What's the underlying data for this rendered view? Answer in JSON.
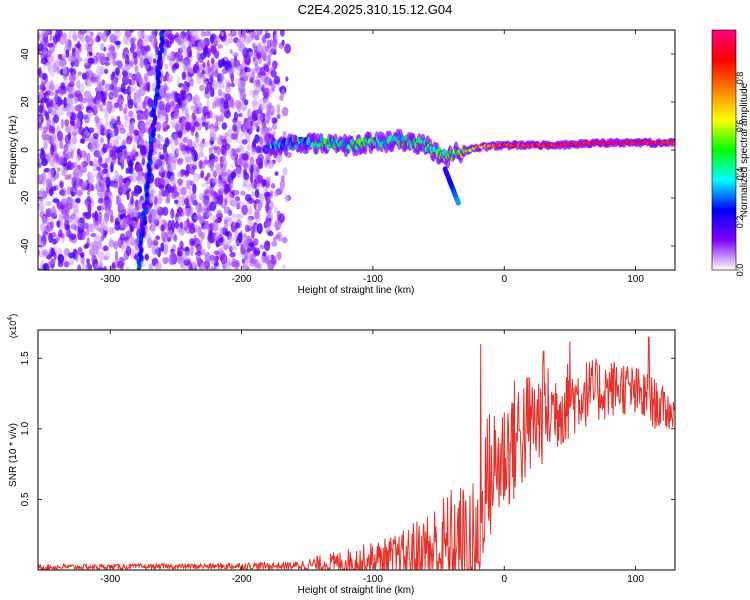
{
  "title": "C2E4.2025.310.15.12.G04",
  "chart_data": [
    {
      "type": "heatmap",
      "name": "spectrogram",
      "xlabel": "Height of straight line (km)",
      "ylabel": "Frequency (Hz)",
      "xlim": [
        -355,
        130
      ],
      "ylim": [
        -50,
        50
      ],
      "x_ticks": [
        -300,
        -200,
        -100,
        0,
        100
      ],
      "y_ticks": [
        -40,
        -20,
        0,
        20,
        40
      ],
      "colorbar": {
        "label": "Normalized spectral amplitude",
        "range": [
          0,
          1
        ],
        "ticks": [
          0.0,
          0.2,
          0.4,
          0.6,
          0.8
        ],
        "tick_labels": [
          "0.0",
          "0.2",
          "0.4",
          "0.6",
          "0.8"
        ],
        "colormap": [
          "#ffffff",
          "#7f00ff",
          "#0000ff",
          "#00ffff",
          "#00ff00",
          "#ffff00",
          "#ff8000",
          "#ff0000",
          "#ff0080"
        ]
      },
      "features": {
        "noise_region_x": [
          -355,
          -180
        ],
        "noise_fade_x": [
          -180,
          -160
        ],
        "diagonal_line": {
          "x_start": -278,
          "y_start": -50,
          "x_end": -260,
          "y_end": 50
        },
        "signal_track": [
          {
            "x": -178,
            "y": 1,
            "amp": 0.3
          },
          {
            "x": -160,
            "y": 3,
            "amp": 0.35
          },
          {
            "x": -140,
            "y": 3,
            "amp": 0.4
          },
          {
            "x": -120,
            "y": 2,
            "amp": 0.42
          },
          {
            "x": -100,
            "y": 3,
            "amp": 0.45
          },
          {
            "x": -80,
            "y": 4,
            "amp": 0.42
          },
          {
            "x": -60,
            "y": 2,
            "amp": 0.45
          },
          {
            "x": -45,
            "y": -3,
            "amp": 0.45
          },
          {
            "x": -35,
            "y": -1,
            "amp": 0.55
          },
          {
            "x": -20,
            "y": 1,
            "amp": 0.7
          },
          {
            "x": 0,
            "y": 2,
            "amp": 0.85
          },
          {
            "x": 40,
            "y": 2,
            "amp": 0.9
          },
          {
            "x": 80,
            "y": 3,
            "amp": 0.95
          },
          {
            "x": 130,
            "y": 3,
            "amp": 0.9
          }
        ],
        "branch": {
          "x_start": -45,
          "y_start": -8,
          "x_end": -35,
          "y_end": -22
        }
      }
    },
    {
      "type": "line",
      "name": "snr",
      "xlabel": "Height of straight line (km)",
      "ylabel": "SNR (10 * v/v)",
      "y_multiplier": "(x10",
      "y_multiplier_exp": "4",
      "y_multiplier_close": ")",
      "xlim": [
        -355,
        130
      ],
      "ylim": [
        0,
        1.7
      ],
      "x_ticks": [
        -300,
        -200,
        -100,
        0,
        100
      ],
      "y_ticks": [
        0.5,
        1.0,
        1.5
      ],
      "y_tick_labels": [
        "0.5",
        "1.0",
        "1.5"
      ],
      "line_color": "#e8302a",
      "envelope": [
        {
          "x": -355,
          "base": 0.02,
          "amp": 0.02
        },
        {
          "x": -250,
          "base": 0.025,
          "amp": 0.02
        },
        {
          "x": -160,
          "base": 0.03,
          "amp": 0.03
        },
        {
          "x": -120,
          "base": 0.05,
          "amp": 0.1
        },
        {
          "x": -80,
          "base": 0.08,
          "amp": 0.18
        },
        {
          "x": -60,
          "base": 0.12,
          "amp": 0.3
        },
        {
          "x": -40,
          "base": 0.15,
          "amp": 0.45
        },
        {
          "x": -25,
          "base": 0.15,
          "amp": 0.5
        },
        {
          "x": -18,
          "base": 0.1,
          "amp": 0.45
        },
        {
          "x": -16,
          "base": 0.6,
          "amp": 0.5
        },
        {
          "x": -5,
          "base": 0.75,
          "amp": 0.45
        },
        {
          "x": 10,
          "base": 0.95,
          "amp": 0.45
        },
        {
          "x": 30,
          "base": 1.1,
          "amp": 0.35
        },
        {
          "x": 60,
          "base": 1.25,
          "amp": 0.25
        },
        {
          "x": 90,
          "base": 1.3,
          "amp": 0.2
        },
        {
          "x": 110,
          "base": 1.2,
          "amp": 0.2
        },
        {
          "x": 130,
          "base": 1.1,
          "amp": 0.12
        }
      ],
      "spike_points": [
        {
          "x": -18,
          "y": 1.6
        },
        {
          "x": 110,
          "y": 1.65
        },
        {
          "x": 50,
          "y": 1.62
        },
        {
          "x": 30,
          "y": 1.55
        }
      ]
    }
  ]
}
